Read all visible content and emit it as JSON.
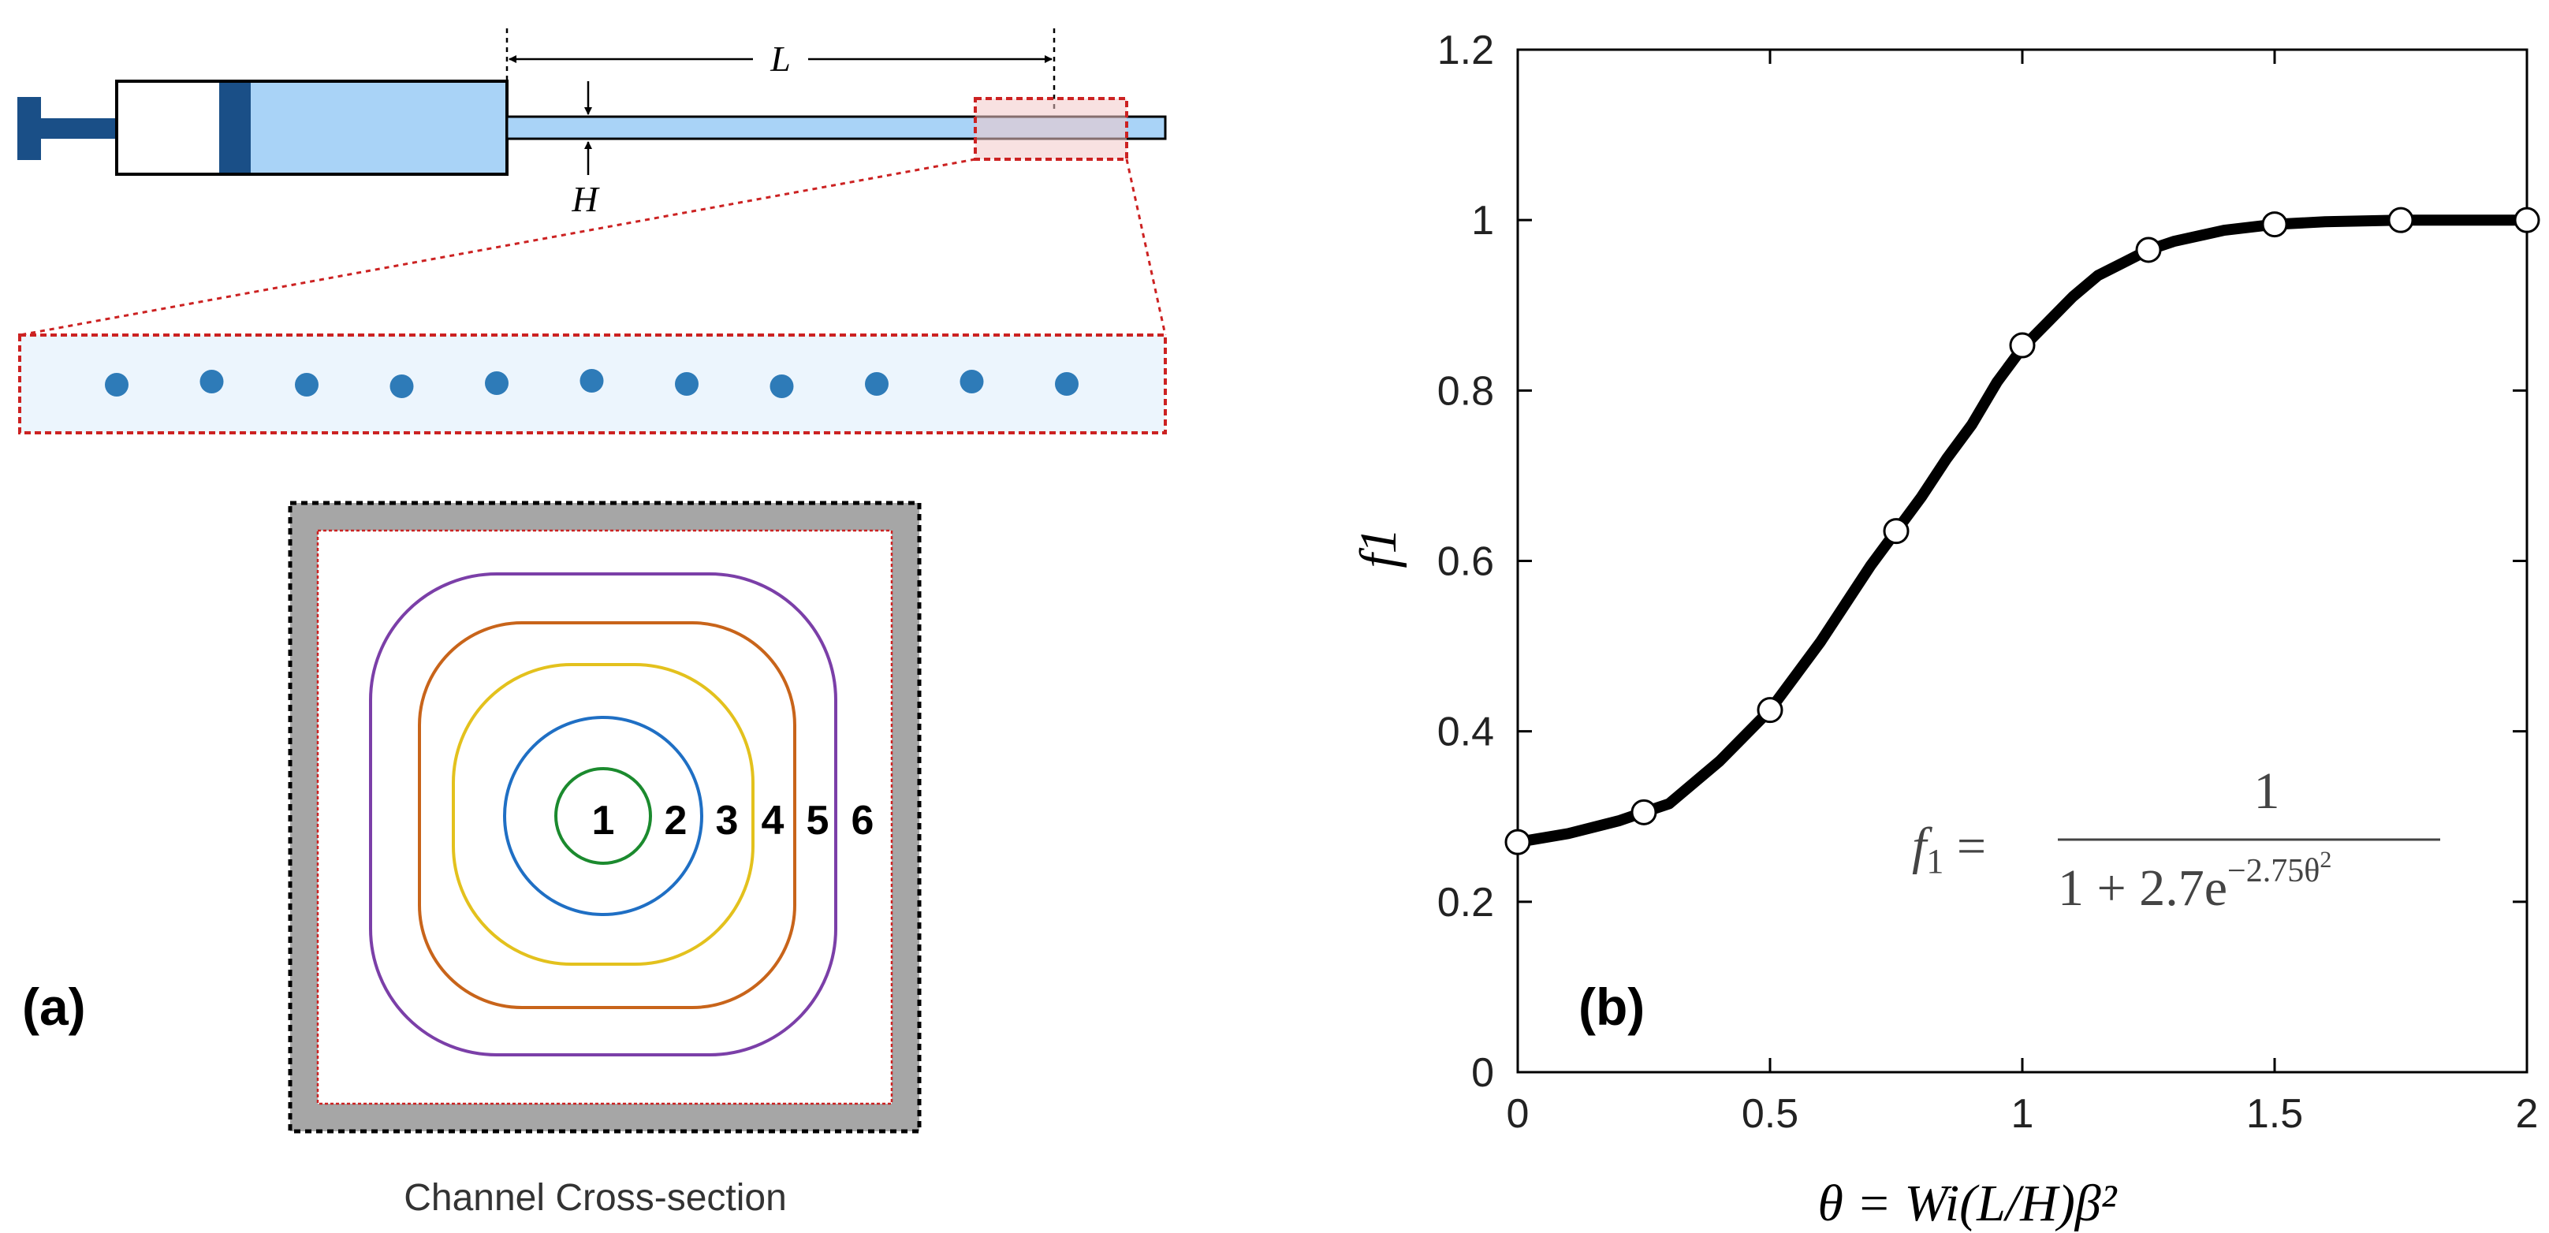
{
  "panel_a": {
    "label": "(a)",
    "length_label": "L",
    "height_label": "H",
    "caption": "Channel Cross-section",
    "contour_labels": [
      "1",
      "2",
      "3",
      "4",
      "5",
      "6"
    ],
    "contour_colors": [
      "#1b8a2e",
      "#1f6fc4",
      "#e3c11d",
      "#c8641a",
      "#ffffff",
      "#7b3fa8"
    ],
    "particle_color": "#2e7bb8",
    "syringe_fluid_color": "#a9d3f7",
    "plunger_color": "#1a4f87",
    "zoom_box_color": "#cc2222",
    "wall_color": "#a6a6a6"
  },
  "panel_b": {
    "label": "(b)",
    "equation": {
      "lhs_var": "f",
      "lhs_sub": "1",
      "numerator": "1",
      "denominator_main": "1 + 2.7e",
      "denominator_exp": "−2.75θ",
      "denominator_exp_pow": "2"
    }
  },
  "chart_data": {
    "type": "line",
    "title": "",
    "xlabel": "θ = Wi(L/H)β²",
    "ylabel": "f1",
    "xlim": [
      0,
      2
    ],
    "ylim": [
      0,
      1.2
    ],
    "x_ticks": [
      "0",
      "0.5",
      "1",
      "1.5",
      "2"
    ],
    "y_ticks": [
      "0",
      "0.2",
      "0.4",
      "0.6",
      "0.8",
      "1",
      "1.2"
    ],
    "grid": false,
    "series": [
      {
        "style": "line",
        "x": [
          0,
          0.1,
          0.2,
          0.25,
          0.3,
          0.35,
          0.4,
          0.45,
          0.5,
          0.55,
          0.6,
          0.65,
          0.7,
          0.75,
          0.8,
          0.85,
          0.9,
          0.95,
          1.0,
          1.05,
          1.1,
          1.15,
          1.2,
          1.25,
          1.3,
          1.4,
          1.5,
          1.6,
          1.75,
          1.9,
          2.0
        ],
        "y": [
          0.27,
          0.28,
          0.295,
          0.305,
          0.315,
          0.34,
          0.365,
          0.395,
          0.425,
          0.465,
          0.505,
          0.55,
          0.595,
          0.635,
          0.675,
          0.72,
          0.76,
          0.81,
          0.85,
          0.88,
          0.91,
          0.935,
          0.95,
          0.965,
          0.975,
          0.988,
          0.995,
          0.998,
          1.0,
          1.0,
          1.0
        ]
      },
      {
        "style": "markers",
        "x": [
          0,
          0.25,
          0.5,
          0.75,
          1.0,
          1.25,
          1.5,
          1.75,
          2.0
        ],
        "y": [
          0.27,
          0.305,
          0.425,
          0.635,
          0.853,
          0.965,
          0.995,
          1.0,
          1.0
        ]
      }
    ]
  }
}
